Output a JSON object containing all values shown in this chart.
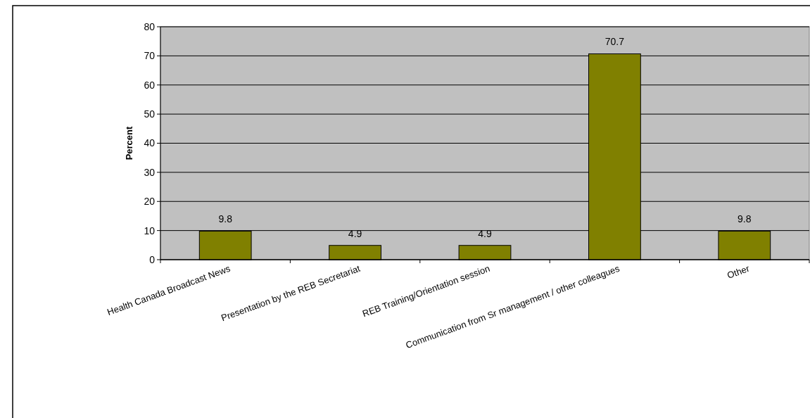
{
  "chart_data": {
    "type": "bar",
    "ylabel": "Percent",
    "categories": [
      "Health Canada Broadcast News",
      "Presentation by the REB Secretariat",
      "REB Training/Orientation session",
      "Communication from Sr management / other colleagues",
      "Other"
    ],
    "values": [
      9.8,
      4.9,
      4.9,
      70.7,
      9.8
    ],
    "color": "#808000",
    "ylim": [
      0,
      80
    ],
    "yticks": [
      0,
      10,
      20,
      30,
      40,
      50,
      60,
      70,
      80
    ],
    "grid": "y",
    "data_labels": true
  }
}
